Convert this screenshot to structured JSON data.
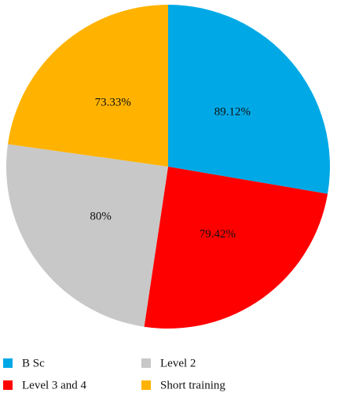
{
  "chart_data": {
    "type": "pie",
    "categories": [
      "B Sc",
      "Level 3 and 4",
      "Level 2",
      "Short training"
    ],
    "values": [
      89.12,
      79.42,
      80,
      73.33
    ],
    "value_labels": [
      "89.12%",
      "79.42%",
      "80%",
      "73.33%"
    ],
    "colors": [
      "#00a9e6",
      "#ff0000",
      "#c8c8c8",
      "#ffb300"
    ]
  }
}
